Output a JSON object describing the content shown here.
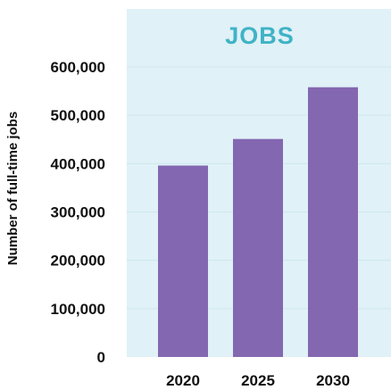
{
  "chart_data": {
    "type": "bar",
    "title": "JOBS",
    "xlabel": "",
    "ylabel": "Number of full-time jobs",
    "categories": [
      "2020",
      "2025",
      "2030"
    ],
    "values": [
      396000,
      451000,
      558000
    ],
    "ylim": [
      0,
      600000
    ],
    "yticks": [
      0,
      100000,
      200000,
      300000,
      400000,
      500000,
      600000
    ],
    "ytick_labels": [
      "0",
      "100,000",
      "200,000",
      "300,000",
      "400,000",
      "500,000",
      "600,000"
    ],
    "grid": true,
    "legend": "none",
    "colors": {
      "bar": "#8467b1",
      "plot_background": "#e0f1f7",
      "title": "#3fb3c6",
      "gridline": "#cfe6ee"
    }
  }
}
